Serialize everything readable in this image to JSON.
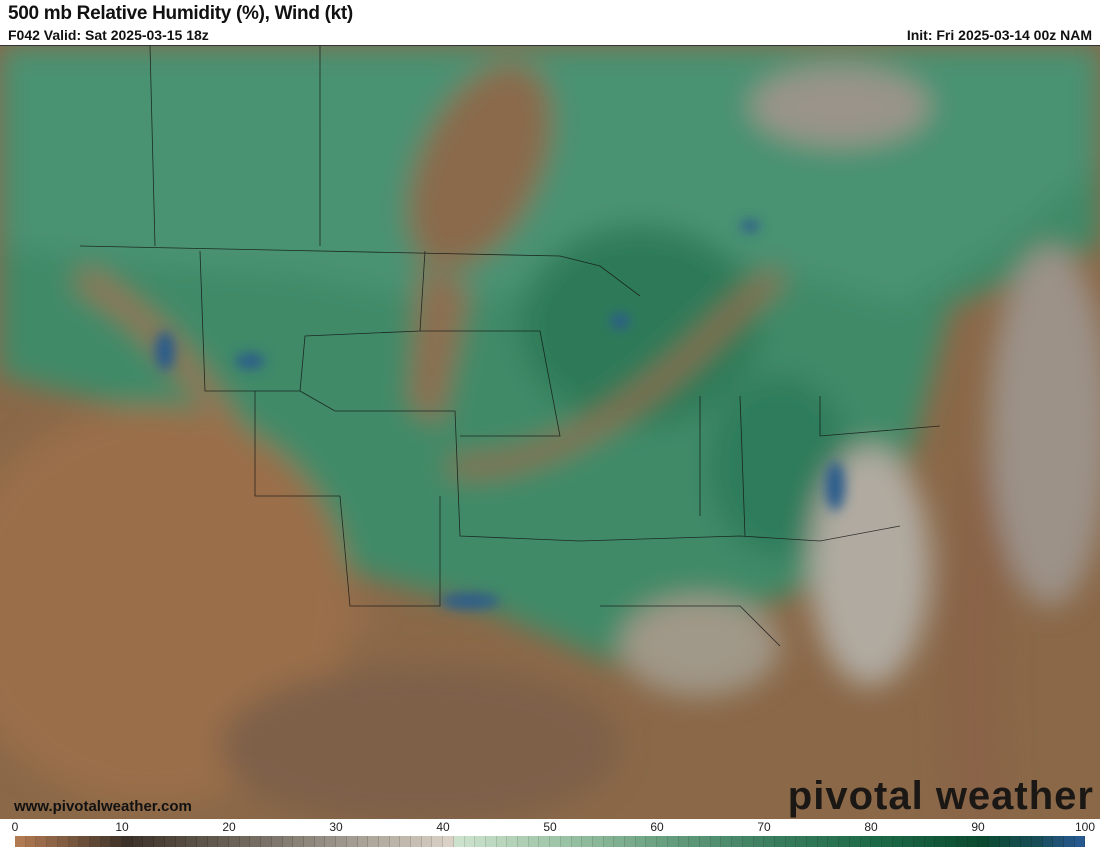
{
  "header": {
    "title": "500 mb Relative Humidity (%), Wind (kt)",
    "valid": "F042 Valid: Sat 2025-03-15 18z",
    "init": "Init: Fri 2025-03-14 00z NAM"
  },
  "map": {
    "variable": "500 mb relative humidity with wind barbs",
    "region": "North America / CONUS",
    "watermark_url": "www.pivotalweather.com",
    "logo_text": "pivotal weather"
  },
  "colorbar": {
    "min": 0,
    "max": 100,
    "ticks": [
      "0",
      "10",
      "20",
      "30",
      "40",
      "50",
      "60",
      "70",
      "80",
      "90",
      "100"
    ],
    "color_stops": [
      {
        "value": 0,
        "color": "#b07a52"
      },
      {
        "value": 10,
        "color": "#3c3128"
      },
      {
        "value": 20,
        "color": "#6b6358"
      },
      {
        "value": 30,
        "color": "#9c968c"
      },
      {
        "value": 40,
        "color": "#d9d1c5"
      },
      {
        "value": 41,
        "color": "#cde2cd"
      },
      {
        "value": 50,
        "color": "#9fc6a8"
      },
      {
        "value": 60,
        "color": "#68a080"
      },
      {
        "value": 70,
        "color": "#3b7e60"
      },
      {
        "value": 80,
        "color": "#1d6a48"
      },
      {
        "value": 90,
        "color": "#0b4a30"
      },
      {
        "value": 95,
        "color": "#184d58"
      },
      {
        "value": 100,
        "color": "#2c5c9c"
      }
    ]
  }
}
